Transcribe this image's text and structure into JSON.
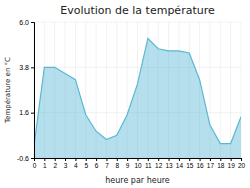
{
  "chart_data": {
    "type": "area",
    "title": "Evolution de la température",
    "xlabel": "heure par heure",
    "ylabel": "Température en °C",
    "x": [
      0,
      1,
      2,
      3,
      4,
      5,
      6,
      7,
      8,
      9,
      10,
      11,
      12,
      13,
      14,
      15,
      16,
      17,
      18,
      19,
      20
    ],
    "values": [
      0.0,
      3.8,
      3.8,
      3.5,
      3.2,
      1.5,
      0.7,
      0.3,
      0.5,
      1.5,
      3.0,
      5.2,
      4.7,
      4.6,
      4.6,
      4.5,
      3.2,
      1.0,
      0.1,
      0.1,
      1.4
    ],
    "color": "#5ab8d4",
    "xlim": [
      0,
      20
    ],
    "xticks": [
      0,
      1,
      2,
      3,
      4,
      5,
      6,
      7,
      8,
      9,
      10,
      11,
      12,
      13,
      14,
      15,
      16,
      17,
      18,
      19,
      20
    ],
    "ylim": [
      -0.6,
      6.0
    ],
    "yticks": [
      -0.6,
      1.6,
      3.8,
      {
        "value": 6.0,
        "label": "6.0"
      }
    ],
    "grid": true
  }
}
